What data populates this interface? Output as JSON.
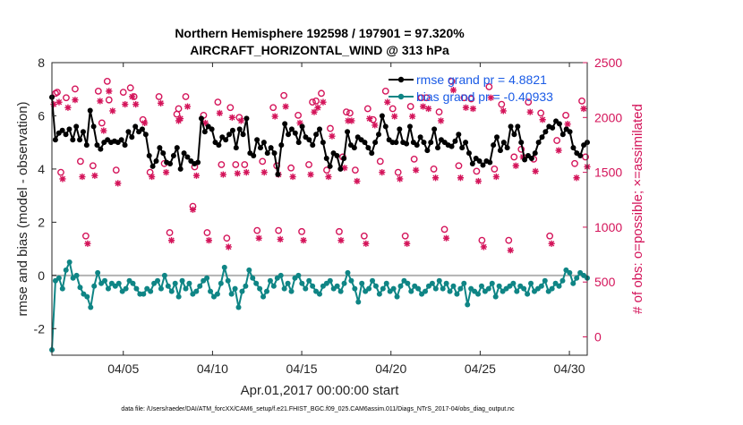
{
  "chart_data": {
    "type": "line",
    "title": "Northern Hemisphere 192598 / 197901 = 97.320%",
    "subtitle": "AIRCRAFT_HORIZONTAL_WIND @ 313 hPa",
    "xlabel": "Apr.01,2017 00:00:00 start",
    "ylabel": "rmse and bias (model - observation)",
    "y2label": "# of obs: o=possible; ×=assimilated",
    "footer": "data file: /Users/raeder/DAI/ATM_forcXX/CAM6_setup/f.e21.FHIST_BGC.f09_025.CAM6assim.011/Diags_NTrS_2017-04/obs_diag_output.nc",
    "xlim": [
      1.0,
      31.0
    ],
    "ylim": [
      -3,
      8
    ],
    "y2lim": [
      -167,
      2500
    ],
    "x_ticks": [
      5,
      10,
      15,
      20,
      25,
      30
    ],
    "x_tick_labels": [
      "04/05",
      "04/10",
      "04/15",
      "04/20",
      "04/25",
      "04/30"
    ],
    "y_ticks": [
      -2,
      0,
      2,
      4,
      6,
      8
    ],
    "y_tick_labels": [
      "-2",
      "0",
      "2",
      "4",
      "6",
      "8"
    ],
    "y2_ticks": [
      0,
      500,
      1000,
      1500,
      2000,
      2500
    ],
    "y2_tick_labels": [
      "0",
      "500",
      "1000",
      "1500",
      "2000",
      "2500"
    ],
    "colors": {
      "rmse": "#000000",
      "bias": "#0f8585",
      "obs": "#d4145a",
      "zero_line": "#b3b3b3",
      "legend_text": "#1a5be6"
    },
    "legend": [
      {
        "name": "rmse grand pr = 4.8821",
        "series": "rmse"
      },
      {
        "name": "bias grand pr = -0.40933",
        "series": "bias"
      }
    ],
    "series": [
      {
        "name": "rmse",
        "axis": "left",
        "values": [
          6.7,
          5.1,
          5.35,
          5.45,
          5.3,
          5.5,
          5.1,
          5.6,
          5.1,
          5.4,
          4.9,
          6.2,
          5.6,
          4.9,
          4.75,
          5.0,
          5.1,
          5.0,
          5.05,
          5.0,
          5.1,
          4.9,
          5.4,
          5.2,
          5.6,
          5.4,
          5.5,
          5.3,
          4.5,
          4.1,
          4.3,
          4.8,
          4.6,
          4.25,
          4.2,
          4.5,
          4.8,
          4.0,
          4.6,
          4.45,
          4.3,
          4.2,
          4.25,
          5.9,
          5.4,
          5.6,
          5.5,
          5.0,
          4.9,
          5.2,
          5.1,
          5.3,
          5.45,
          4.8,
          5.5,
          5.3,
          5.9,
          4.6,
          4.5,
          5.1,
          4.8,
          5.0,
          4.6,
          4.8,
          4.6,
          3.8,
          4.9,
          5.7,
          5.3,
          5.5,
          5.35,
          5.0,
          5.6,
          5.2,
          5.1,
          4.9,
          5.3,
          5.5,
          5.0,
          4.4,
          4.1,
          4.6,
          4.5,
          4.0,
          4.4,
          5.4,
          4.9,
          4.8,
          5.2,
          5.1,
          5.0,
          4.8,
          4.6,
          5.0,
          5.3,
          6.0,
          5.6,
          5.1,
          5.0,
          5.0,
          5.5,
          5.0,
          4.95,
          5.6,
          5.0,
          4.9,
          5.2,
          5.0,
          4.7,
          5.0,
          5.5,
          4.8,
          5.1,
          5.0,
          4.9,
          4.85,
          5.05,
          5.3,
          4.8,
          5.0,
          4.6,
          4.2,
          4.4,
          4.3,
          4.15,
          4.3,
          4.25,
          4.9,
          5.2,
          4.7,
          5.0,
          4.8,
          5.6,
          5.3,
          5.6,
          5.0,
          4.35,
          4.5,
          4.4,
          4.6,
          5.0,
          5.2,
          5.4,
          5.6,
          5.55,
          5.8,
          5.7,
          5.3,
          5.5,
          5.4,
          4.8,
          4.6,
          4.5,
          4.9,
          5.0
        ]
      },
      {
        "name": "bias",
        "axis": "left",
        "values": [
          -2.8,
          -0.2,
          -0.1,
          -0.5,
          0.2,
          0.5,
          -0.1,
          0.0,
          -0.45,
          -0.7,
          -0.8,
          -1.2,
          -0.4,
          0.1,
          -0.3,
          -0.2,
          -0.5,
          -0.3,
          -0.4,
          -0.3,
          -0.6,
          -0.5,
          -0.2,
          -0.3,
          -0.5,
          -0.7,
          -0.7,
          -0.5,
          -0.6,
          -0.3,
          -0.2,
          -0.5,
          0.0,
          -0.4,
          -0.6,
          -0.3,
          -0.8,
          -0.2,
          -0.5,
          -0.3,
          -0.7,
          -0.6,
          -0.4,
          -0.2,
          -0.1,
          -0.6,
          -0.8,
          -0.7,
          -0.3,
          0.3,
          -0.2,
          -0.7,
          -0.5,
          -1.2,
          -0.6,
          -0.4,
          0.2,
          -0.1,
          -0.3,
          -0.5,
          -0.8,
          -0.6,
          -0.2,
          -0.4,
          -0.1,
          0.0,
          -0.5,
          -0.3,
          -0.6,
          -0.1,
          0.0,
          -0.3,
          -0.5,
          -0.2,
          -0.4,
          -0.6,
          -0.7,
          -0.4,
          -0.3,
          -0.2,
          -0.5,
          -0.4,
          -0.6,
          -0.3,
          0.1,
          -0.2,
          -0.5,
          -1.0,
          -0.3,
          -0.6,
          -0.5,
          -0.2,
          -0.4,
          -0.7,
          -0.5,
          -0.3,
          -0.6,
          -0.5,
          -0.8,
          -0.4,
          -0.2,
          -0.3,
          -0.6,
          -0.4,
          -0.5,
          -0.7,
          -0.6,
          -0.4,
          -0.3,
          -0.5,
          -0.2,
          -0.5,
          -0.3,
          -0.6,
          -0.4,
          -0.7,
          -0.5,
          -0.3,
          -1.1,
          -0.5,
          -0.6,
          -0.7,
          -0.4,
          -0.6,
          -0.5,
          -0.3,
          -0.8,
          -0.4,
          -0.6,
          -0.5,
          -0.4,
          -0.3,
          -0.6,
          -0.4,
          -0.5,
          -0.7,
          -0.3,
          -0.6,
          -0.5,
          -0.4,
          -0.2,
          -0.6,
          -0.5,
          -0.3,
          -0.4,
          -0.2,
          0.2,
          0.1,
          -0.3,
          -0.1,
          0.1,
          0.0,
          -0.1
        ]
      },
      {
        "name": "# of obs possible",
        "axis": "right",
        "marker": "o",
        "x": [
          1.2,
          1.3,
          1.5,
          1.8,
          2.3,
          2.6,
          2.9,
          3.3,
          3.6,
          3.8,
          4.1,
          4.2,
          4.6,
          5.0,
          5.4,
          5.6,
          6.1,
          6.5,
          7.0,
          7.3,
          7.6,
          8.0,
          8.1,
          8.5,
          8.9,
          9.0,
          9.5,
          9.7,
          10.3,
          10.5,
          10.8,
          11.0,
          11.3,
          11.5,
          11.8,
          12.5,
          12.8,
          13.4,
          13.6,
          13.7,
          14.0,
          14.4,
          14.8,
          15.0,
          15.4,
          15.6,
          15.8,
          16.1,
          16.4,
          16.6,
          17.1,
          17.3,
          17.5,
          17.7,
          18.0,
          18.5,
          18.7,
          19.0,
          19.4,
          19.7,
          20.1,
          20.4,
          20.8,
          21.1,
          21.3,
          21.7,
          22.0,
          22.4,
          22.7,
          23.0,
          23.4,
          23.8,
          24.1,
          24.5,
          24.8,
          25.1,
          25.5,
          25.8,
          26.2,
          26.6,
          26.9,
          27.3,
          27.7,
          28.0,
          28.4,
          28.9,
          29.3,
          29.8,
          30.3,
          30.7,
          30.9
        ],
        "values": [
          2220,
          2230,
          1500,
          2180,
          2260,
          1600,
          920,
          1560,
          2240,
          1950,
          2330,
          2160,
          1520,
          2230,
          2270,
          2190,
          1980,
          1500,
          2190,
          1580,
          950,
          2030,
          2080,
          2190,
          1190,
          1550,
          2020,
          950,
          2140,
          1570,
          900,
          2090,
          1570,
          2000,
          1570,
          970,
          1600,
          2090,
          1560,
          970,
          2200,
          1540,
          2020,
          960,
          1570,
          2140,
          2150,
          2220,
          1520,
          1900,
          960,
          1640,
          2050,
          2040,
          1520,
          920,
          2080,
          1980,
          1600,
          2240,
          2080,
          1500,
          920,
          2100,
          1620,
          2180,
          2180,
          1530,
          2050,
          980,
          2330,
          1560,
          2180,
          2170,
          1510,
          880,
          2280,
          1530,
          2120,
          880,
          1640,
          1710,
          2140,
          1620,
          2040,
          920,
          1790,
          2020,
          1580,
          2150,
          1640
        ]
      },
      {
        "name": "# of obs assimilated",
        "axis": "right",
        "marker": "x",
        "x": [
          1.1,
          1.4,
          1.6,
          1.9,
          2.3,
          2.7,
          3.0,
          3.4,
          3.7,
          3.9,
          4.2,
          4.4,
          4.7,
          5.1,
          5.5,
          5.7,
          6.2,
          6.6,
          7.1,
          7.4,
          7.7,
          8.1,
          8.2,
          8.6,
          8.9,
          9.1,
          9.6,
          9.8,
          10.4,
          10.6,
          10.9,
          11.1,
          11.4,
          11.6,
          11.9,
          12.6,
          12.9,
          13.5,
          13.7,
          13.8,
          14.1,
          14.5,
          14.9,
          15.1,
          15.5,
          15.7,
          15.9,
          16.2,
          16.5,
          16.7,
          17.2,
          17.4,
          17.6,
          17.8,
          18.1,
          18.6,
          18.8,
          19.1,
          19.5,
          19.8,
          20.2,
          20.5,
          20.9,
          21.2,
          21.4,
          21.8,
          22.1,
          22.5,
          22.8,
          23.1,
          23.5,
          23.9,
          24.2,
          24.6,
          24.9,
          25.2,
          25.6,
          25.9,
          26.3,
          26.7,
          27.0,
          27.4,
          27.8,
          28.1,
          28.5,
          29.0,
          29.4,
          29.9,
          30.4,
          30.8,
          31.0
        ],
        "values": [
          2120,
          2140,
          1440,
          2090,
          2160,
          1460,
          850,
          1470,
          2150,
          1880,
          2240,
          2060,
          1400,
          2120,
          2190,
          2120,
          1950,
          1460,
          2130,
          1500,
          880,
          1970,
          1990,
          2100,
          1160,
          1470,
          1950,
          880,
          2040,
          1480,
          820,
          2000,
          1490,
          1970,
          1500,
          900,
          1500,
          2010,
          1480,
          890,
          2100,
          1460,
          1950,
          880,
          1480,
          2050,
          2090,
          2140,
          1460,
          1830,
          880,
          1540,
          1970,
          1970,
          1420,
          850,
          1990,
          1930,
          1500,
          2140,
          2010,
          1440,
          850,
          2010,
          1520,
          2100,
          2080,
          1450,
          1970,
          900,
          2250,
          1450,
          2090,
          2080,
          1420,
          820,
          2180,
          1460,
          2060,
          790,
          1560,
          1640,
          2050,
          1510,
          1980,
          850,
          1700,
          1940,
          1450,
          2080,
          1550
        ]
      }
    ]
  }
}
